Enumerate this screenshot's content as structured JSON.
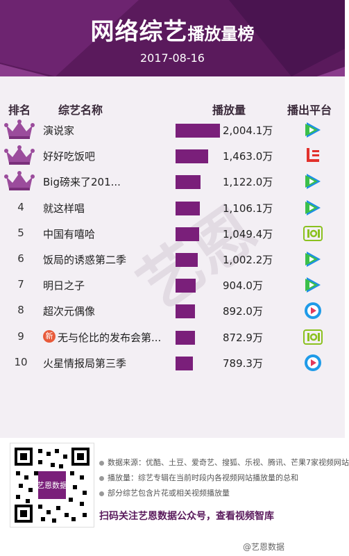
{
  "header": {
    "title_main": "网络综艺",
    "title_sub": "播放量榜",
    "date": "2017-08-16"
  },
  "columns": {
    "rank": "排名",
    "name": "综艺名称",
    "views": "播放量",
    "platform": "播出平台"
  },
  "chart_data": {
    "type": "bar",
    "categories": [
      "演说家",
      "好好吃饭吧",
      "Big磅来了201...",
      "就这样唱",
      "中国有嘻哈",
      "饭局的诱惑第二季",
      "明日之子",
      "超次元偶像",
      "无与伦比的发布会第...",
      "火星情报局第三季"
    ],
    "values": [
      2004.1,
      1463.0,
      1122.0,
      1106.1,
      1049.4,
      1002.2,
      904.0,
      892.0,
      872.9,
      789.3
    ],
    "value_unit": "万"
  },
  "rows": [
    {
      "rank": "1",
      "crown": true,
      "name": "演说家",
      "value_label": "2,004.1万",
      "platform_icon": "tencent-video-icon",
      "new": false
    },
    {
      "rank": "2",
      "crown": true,
      "name": "好好吃饭吧",
      "value_label": "1,463.0万",
      "platform_icon": "letv-icon",
      "new": false
    },
    {
      "rank": "3",
      "crown": true,
      "name": "Big磅来了201...",
      "value_label": "1,122.0万",
      "platform_icon": "tencent-video-icon",
      "new": false
    },
    {
      "rank": "4",
      "crown": false,
      "name": "就这样唱",
      "value_label": "1,106.1万",
      "platform_icon": "tencent-video-icon",
      "new": false
    },
    {
      "rank": "5",
      "crown": false,
      "name": "中国有嘻哈",
      "value_label": "1,049.4万",
      "platform_icon": "iqiyi-icon",
      "new": false
    },
    {
      "rank": "6",
      "crown": false,
      "name": "饭局的诱惑第二季",
      "value_label": "1,002.2万",
      "platform_icon": "tencent-video-icon",
      "new": false
    },
    {
      "rank": "7",
      "crown": false,
      "name": "明日之子",
      "value_label": "904.0万",
      "platform_icon": "tencent-video-icon",
      "new": false
    },
    {
      "rank": "8",
      "crown": false,
      "name": "超次元偶像",
      "value_label": "892.0万",
      "platform_icon": "youku-icon",
      "new": false
    },
    {
      "rank": "9",
      "crown": false,
      "name": "无与伦比的发布会第...",
      "value_label": "872.9万",
      "platform_icon": "iqiyi-icon",
      "new": true,
      "new_label": "新"
    },
    {
      "rank": "10",
      "crown": false,
      "name": "火星情报局第三季",
      "value_label": "789.3万",
      "platform_icon": "youku-icon",
      "new": false
    }
  ],
  "colors": {
    "brand_purple": "#5a1a5c",
    "bar": "#7a1f7a",
    "tencent_green": "#3cbf4a",
    "tencent_blue": "#1e8fe6",
    "letv_red": "#e2312c",
    "iqiyi_green": "#8bc11f",
    "youku_blue": "#1f9be8"
  },
  "footer": {
    "qr_label": "艺恩数据",
    "notes": [
      "数据来源：优酷、土豆、爱奇艺、搜狐、乐视、腾讯、芒果7家视频网站",
      "播放量：综艺专辑在当前时段内各视频网站播放量的总和",
      "部分综艺包含片花或相关视频播放量"
    ],
    "cta": "扫码关注艺恩数据公众号，查看视频智库",
    "weibo": "@艺恩数据"
  }
}
